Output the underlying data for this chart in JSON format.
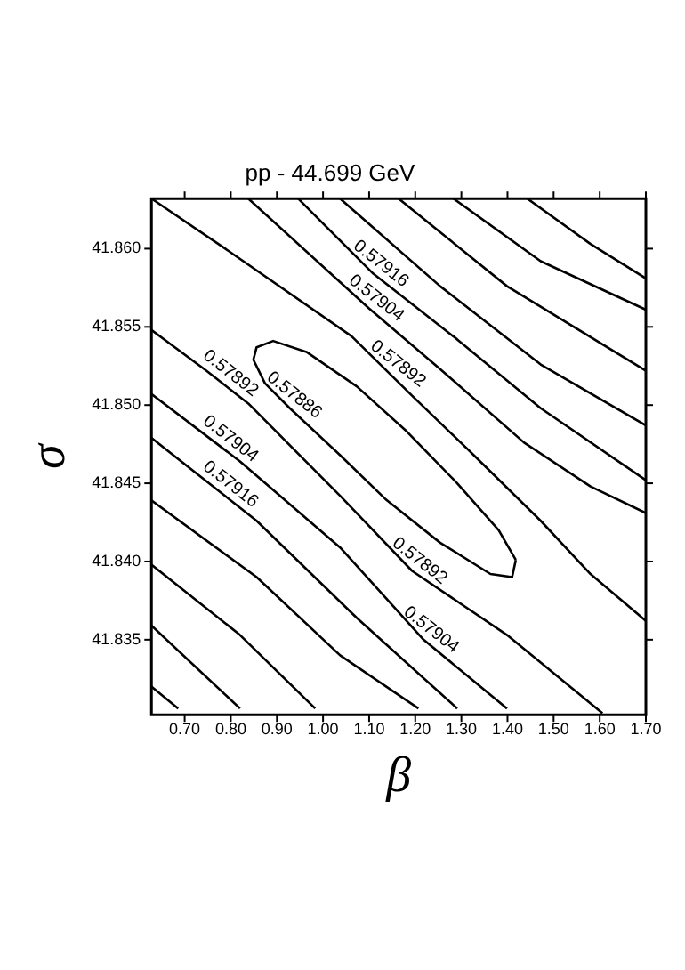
{
  "chart_data": {
    "type": "line",
    "title": "pp - 44.699 GeV",
    "xlabel": "β",
    "ylabel": "σ",
    "xlim": [
      0.628,
      1.7
    ],
    "ylim": [
      41.8302,
      41.8632
    ],
    "xticks": [
      {
        "value": 0.7,
        "label": "0.70"
      },
      {
        "value": 0.8,
        "label": "0.80"
      },
      {
        "value": 0.9,
        "label": "0.90"
      },
      {
        "value": 1.0,
        "label": "1.00"
      },
      {
        "value": 1.1,
        "label": "1.10"
      },
      {
        "value": 1.2,
        "label": "1.20"
      },
      {
        "value": 1.3,
        "label": "1.30"
      },
      {
        "value": 1.4,
        "label": "1.40"
      },
      {
        "value": 1.5,
        "label": "1.50"
      },
      {
        "value": 1.6,
        "label": "1.60"
      },
      {
        "value": 1.7,
        "label": "1.70"
      }
    ],
    "yticks": [
      {
        "value": 41.835,
        "label": "41.835"
      },
      {
        "value": 41.84,
        "label": "41.840"
      },
      {
        "value": 41.845,
        "label": "41.845"
      },
      {
        "value": 41.85,
        "label": "41.850"
      },
      {
        "value": 41.855,
        "label": "41.855"
      },
      {
        "value": 41.86,
        "label": "41.860"
      }
    ],
    "grid": false,
    "legend": false,
    "marker": "none",
    "line_style": "solid",
    "series": [
      {
        "color": "#000000",
        "x": [
          0.628,
          0.783,
          1.062,
          1.193,
          1.327,
          1.472,
          1.58,
          1.7
        ],
        "values": [
          41.8632,
          41.8601,
          41.8544,
          41.8506,
          41.8468,
          41.8426,
          41.8392,
          41.8362
        ]
      },
      {
        "color": "#000000",
        "x": [
          0.838,
          1.099,
          1.254,
          1.436,
          1.58,
          1.7
        ],
        "values": [
          41.8632,
          41.8562,
          41.8523,
          41.8476,
          41.8448,
          41.8431
        ]
      },
      {
        "color": "#000000",
        "x": [
          0.946,
          1.109,
          1.291,
          1.472,
          1.7
        ],
        "values": [
          41.8632,
          41.8584,
          41.8542,
          41.8498,
          41.8452
        ]
      },
      {
        "color": "#000000",
        "x": [
          1.037,
          1.254,
          1.472,
          1.7
        ],
        "values": [
          41.8632,
          41.8576,
          41.8526,
          41.8487
        ]
      },
      {
        "color": "#000000",
        "x": [
          1.164,
          1.399,
          1.7
        ],
        "values": [
          41.8632,
          41.8576,
          41.8522
        ]
      },
      {
        "color": "#000000",
        "x": [
          1.283,
          1.472,
          1.7
        ],
        "values": [
          41.8632,
          41.8592,
          41.8561
        ]
      },
      {
        "color": "#000000",
        "x": [
          1.443,
          1.58,
          1.7
        ],
        "values": [
          41.8632,
          41.8603,
          41.8581
        ]
      },
      {
        "color": "#000000",
        "x": [
          0.849,
          0.856,
          0.892,
          0.964,
          1.073,
          1.182,
          1.291,
          1.381,
          1.418
        ],
        "values": [
          41.8529,
          41.8537,
          41.8541,
          41.8534,
          41.8512,
          41.8483,
          41.845,
          41.842,
          41.8401
        ]
      },
      {
        "color": "#000000",
        "x": [
          0.849,
          0.874,
          0.928,
          1.037,
          1.135,
          1.254,
          1.363,
          1.41,
          1.418
        ],
        "values": [
          41.8529,
          41.8514,
          41.8498,
          41.8468,
          41.844,
          41.8412,
          41.8392,
          41.839,
          41.8401
        ]
      },
      {
        "color": "#000000",
        "x": [
          0.628,
          0.747,
          0.838,
          1.037,
          1.193,
          1.399,
          1.606
        ],
        "values": [
          41.8548,
          41.8522,
          41.8501,
          41.8442,
          41.8394,
          41.8353,
          41.8303
        ]
      },
      {
        "color": "#000000",
        "x": [
          0.628,
          0.82,
          1.037,
          1.218,
          1.399
        ],
        "values": [
          41.8507,
          41.8464,
          41.8409,
          41.835,
          41.8306
        ]
      },
      {
        "color": "#000000",
        "x": [
          0.628,
          0.856,
          1.073,
          1.291
        ],
        "values": [
          41.8479,
          41.8426,
          41.8364,
          41.8306
        ]
      },
      {
        "color": "#000000",
        "x": [
          0.628,
          0.856,
          1.037,
          1.207
        ],
        "values": [
          41.8439,
          41.839,
          41.834,
          41.8306
        ]
      },
      {
        "color": "#000000",
        "x": [
          0.628,
          0.82,
          0.983
        ],
        "values": [
          41.8398,
          41.8353,
          41.8306
        ]
      },
      {
        "color": "#000000",
        "x": [
          0.628,
          0.82
        ],
        "values": [
          41.8359,
          41.8306
        ]
      },
      {
        "color": "#000000",
        "x": [
          0.628,
          0.686
        ],
        "values": [
          41.832,
          41.8306
        ]
      }
    ],
    "annotations": [
      {
        "text": "0.57916",
        "x": 1.109,
        "y": 41.8584
      },
      {
        "text": "0.57904",
        "x": 1.099,
        "y": 41.8562
      },
      {
        "text": "0.57892",
        "x": 1.146,
        "y": 41.852
      },
      {
        "text": "0.57886",
        "x": 0.921,
        "y": 41.85
      },
      {
        "text": "0.57892",
        "x": 0.783,
        "y": 41.8514
      },
      {
        "text": "0.57904",
        "x": 0.783,
        "y": 41.8472
      },
      {
        "text": "0.57916",
        "x": 0.783,
        "y": 41.8443
      },
      {
        "text": "0.57892",
        "x": 1.193,
        "y": 41.8394
      },
      {
        "text": "0.57904",
        "x": 1.218,
        "y": 41.835
      }
    ]
  }
}
